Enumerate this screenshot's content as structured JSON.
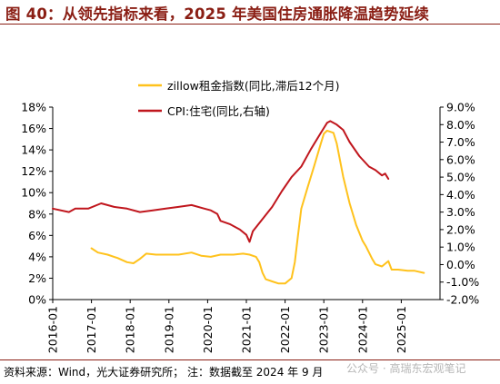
{
  "header": {
    "title": "图 40：从领先指标来看，2025 年美国住房通胀降温趋势延续"
  },
  "footer": {
    "source": "资料来源：Wind，光大证券研究所；  注：数据截至 2024 年 9 月"
  },
  "watermark": {
    "text": "公众号 · 高瑞东宏观笔记"
  },
  "colors": {
    "zillow": "#ffc21c",
    "cpi": "#c0161d",
    "title": "#8a1e14"
  },
  "chart_data": {
    "type": "line",
    "title": "",
    "x_ticks": [
      "2016-01",
      "2017-01",
      "2018-01",
      "2019-01",
      "2020-01",
      "2021-01",
      "2022-01",
      "2023-01",
      "2024-01",
      "2025-01"
    ],
    "x_range": [
      "2016-01",
      "2025-12"
    ],
    "y_left": {
      "ticks": [
        "0%",
        "2%",
        "4%",
        "6%",
        "8%",
        "10%",
        "12%",
        "14%",
        "16%",
        "18%"
      ],
      "range": [
        0,
        18
      ]
    },
    "y_right": {
      "ticks": [
        "-2.0%",
        "-1.0%",
        "0.0%",
        "1.0%",
        "2.0%",
        "3.0%",
        "4.0%",
        "5.0%",
        "6.0%",
        "7.0%",
        "8.0%",
        "9.0%"
      ],
      "range": [
        -2,
        9
      ]
    },
    "legend_position": "top-center",
    "series": [
      {
        "name": "zillow租金指数(同比,滞后12个月)",
        "axis": "left",
        "color": "#ffc21c",
        "points": [
          [
            "2017-01",
            4.8
          ],
          [
            "2017-03",
            4.4
          ],
          [
            "2017-06",
            4.2
          ],
          [
            "2017-09",
            3.9
          ],
          [
            "2017-12",
            3.5
          ],
          [
            "2018-02",
            3.4
          ],
          [
            "2018-04",
            3.8
          ],
          [
            "2018-06",
            4.3
          ],
          [
            "2018-09",
            4.2
          ],
          [
            "2018-12",
            4.2
          ],
          [
            "2019-04",
            4.2
          ],
          [
            "2019-08",
            4.4
          ],
          [
            "2019-11",
            4.1
          ],
          [
            "2020-02",
            4.0
          ],
          [
            "2020-05",
            4.2
          ],
          [
            "2020-09",
            4.2
          ],
          [
            "2020-12",
            4.3
          ],
          [
            "2021-02",
            4.2
          ],
          [
            "2021-04",
            4.0
          ],
          [
            "2021-05",
            3.5
          ],
          [
            "2021-06",
            2.5
          ],
          [
            "2021-07",
            1.9
          ],
          [
            "2021-09",
            1.7
          ],
          [
            "2021-11",
            1.5
          ],
          [
            "2022-01",
            1.5
          ],
          [
            "2022-03",
            2.0
          ],
          [
            "2022-04",
            3.5
          ],
          [
            "2022-05",
            6.0
          ],
          [
            "2022-06",
            8.5
          ],
          [
            "2022-08",
            10.5
          ],
          [
            "2022-10",
            12.5
          ],
          [
            "2022-12",
            14.5
          ],
          [
            "2023-01",
            15.5
          ],
          [
            "2023-02",
            15.8
          ],
          [
            "2023-04",
            15.6
          ],
          [
            "2023-05",
            14.6
          ],
          [
            "2023-07",
            11.5
          ],
          [
            "2023-09",
            9.0
          ],
          [
            "2023-11",
            7.0
          ],
          [
            "2024-01",
            5.5
          ],
          [
            "2024-02",
            5.0
          ],
          [
            "2024-04",
            3.8
          ],
          [
            "2024-05",
            3.3
          ],
          [
            "2024-07",
            3.1
          ],
          [
            "2024-09",
            3.6
          ],
          [
            "2024-10",
            2.8
          ],
          [
            "2024-12",
            2.8
          ],
          [
            "2025-03",
            2.7
          ],
          [
            "2025-05",
            2.7
          ],
          [
            "2025-08",
            2.5
          ]
        ]
      },
      {
        "name": "CPI:住宅(同比,右轴)",
        "axis": "right",
        "color": "#c0161d",
        "points": [
          [
            "2016-01",
            3.2
          ],
          [
            "2016-06",
            3.0
          ],
          [
            "2016-08",
            3.2
          ],
          [
            "2016-12",
            3.2
          ],
          [
            "2017-04",
            3.5
          ],
          [
            "2017-08",
            3.3
          ],
          [
            "2017-12",
            3.2
          ],
          [
            "2018-04",
            3.0
          ],
          [
            "2018-08",
            3.1
          ],
          [
            "2018-12",
            3.2
          ],
          [
            "2019-04",
            3.3
          ],
          [
            "2019-08",
            3.4
          ],
          [
            "2019-12",
            3.2
          ],
          [
            "2020-02",
            3.1
          ],
          [
            "2020-04",
            2.9
          ],
          [
            "2020-05",
            2.5
          ],
          [
            "2020-08",
            2.3
          ],
          [
            "2020-11",
            2.0
          ],
          [
            "2021-01",
            1.7
          ],
          [
            "2021-02",
            1.3
          ],
          [
            "2021-03",
            1.9
          ],
          [
            "2021-06",
            2.6
          ],
          [
            "2021-09",
            3.3
          ],
          [
            "2021-12",
            4.2
          ],
          [
            "2022-03",
            5.0
          ],
          [
            "2022-06",
            5.6
          ],
          [
            "2022-09",
            6.6
          ],
          [
            "2022-12",
            7.5
          ],
          [
            "2023-02",
            8.1
          ],
          [
            "2023-03",
            8.2
          ],
          [
            "2023-05",
            8.0
          ],
          [
            "2023-07",
            7.7
          ],
          [
            "2023-09",
            7.0
          ],
          [
            "2023-12",
            6.2
          ],
          [
            "2024-03",
            5.6
          ],
          [
            "2024-05",
            5.4
          ],
          [
            "2024-07",
            5.1
          ],
          [
            "2024-08",
            5.2
          ],
          [
            "2024-09",
            4.9
          ]
        ]
      }
    ]
  }
}
